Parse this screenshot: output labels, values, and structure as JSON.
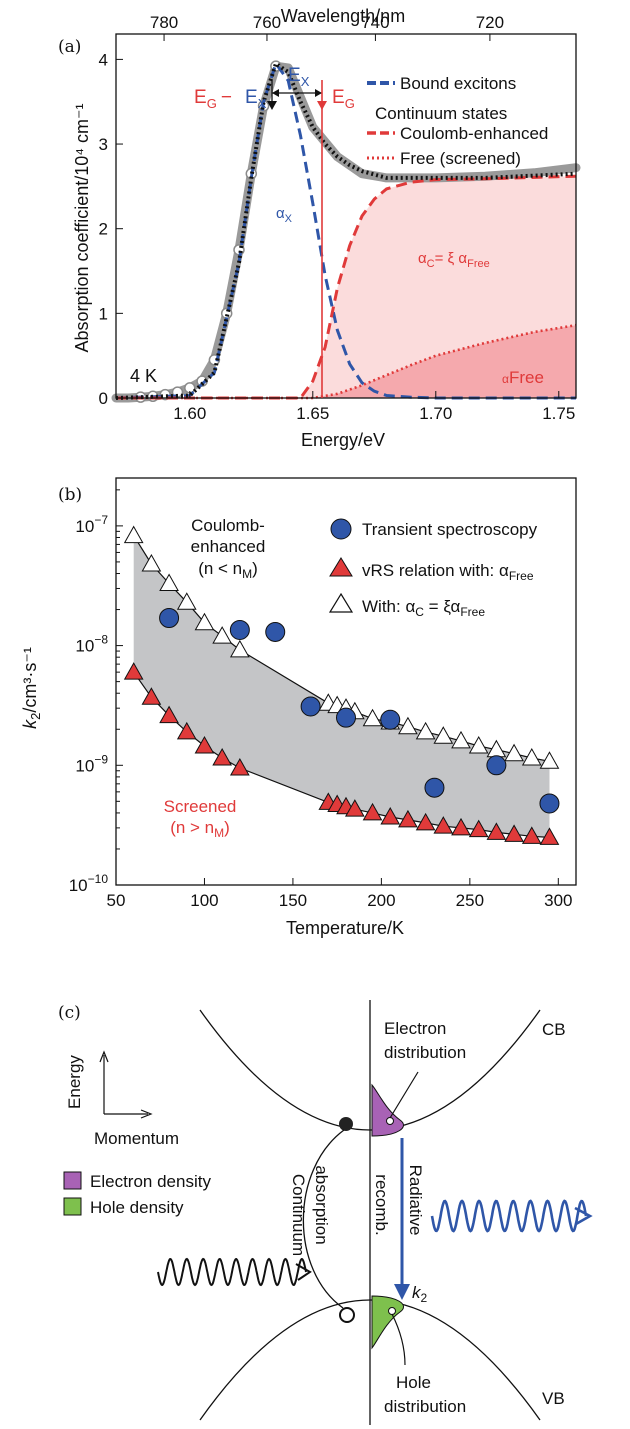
{
  "colors": {
    "blue": "#2f56a8",
    "red": "#e03a3a",
    "gray": "#9a9a9a",
    "shade": "#c4c5c7",
    "lightred": "#fbdcdc",
    "midred": "#f5a9ad",
    "purple": "#a862b5",
    "green": "#7ec04d"
  },
  "chart_data": [
    {
      "id": "a",
      "type": "line",
      "panel_label": "(a)",
      "xlabel": "Energy/eV",
      "ylabel": "Absorption coefficient/10⁴ cm⁻¹",
      "x2label": "Wavelength/nm",
      "xlim": [
        1.57,
        1.757
      ],
      "ylim": [
        0,
        4.3
      ],
      "xticks": [
        "1.60",
        "1.65",
        "1.70",
        "1.75"
      ],
      "xtick_values": [
        1.6,
        1.65,
        1.7,
        1.75
      ],
      "yticks": [
        "0",
        "1",
        "2",
        "3",
        "4"
      ],
      "ytick_values": [
        0,
        1,
        2,
        3,
        4
      ],
      "x2ticks": [
        "780",
        "760",
        "740",
        "720"
      ],
      "x2tick_values": [
        780,
        760,
        740,
        720
      ],
      "annotations": {
        "temperature": "4 K",
        "eg_minus_ex": "E",
        "g_sub": "G",
        "minus": "−",
        "ex_sub": "X",
        "ex_top": "E",
        "eg": "E",
        "alpha_x": "α",
        "x_sub": "X",
        "alpha_c_a": "α",
        "c_sub": "C",
        "alpha_c_b": "= ξ α",
        "free_sub": "Free",
        "alpha_free_a": "α",
        "alpha_free_b": "Free"
      },
      "legend": {
        "bound": "Bound excitons",
        "continuum": "Continuum states",
        "coulomb": "Coulomb-enhanced",
        "free": "Free (screened)"
      },
      "series": [
        {
          "name": "Bound excitons",
          "x": [
            1.57,
            1.6,
            1.61,
            1.62,
            1.625,
            1.63,
            1.635,
            1.64,
            1.645,
            1.65,
            1.655,
            1.66,
            1.665,
            1.67,
            1.675,
            1.68,
            1.69,
            1.7,
            1.757
          ],
          "values": [
            0,
            0.03,
            0.3,
            1.6,
            2.6,
            3.5,
            3.95,
            3.75,
            3.1,
            2.3,
            1.45,
            0.8,
            0.4,
            0.18,
            0.08,
            0.03,
            0.01,
            0,
            0
          ]
        },
        {
          "name": "Coulomb-enhanced",
          "x": [
            1.57,
            1.645,
            1.65,
            1.655,
            1.66,
            1.665,
            1.67,
            1.675,
            1.68,
            1.69,
            1.7,
            1.72,
            1.757
          ],
          "values": [
            0,
            0,
            0.2,
            0.6,
            1.3,
            1.8,
            2.15,
            2.35,
            2.47,
            2.55,
            2.58,
            2.59,
            2.62
          ]
        },
        {
          "name": "Free (screened)",
          "x": [
            1.57,
            1.65,
            1.66,
            1.67,
            1.68,
            1.69,
            1.7,
            1.72,
            1.74,
            1.757
          ],
          "values": [
            0,
            0,
            0.05,
            0.15,
            0.27,
            0.39,
            0.5,
            0.65,
            0.78,
            0.86
          ]
        },
        {
          "name": "Total",
          "x": [
            1.57,
            1.6,
            1.61,
            1.62,
            1.625,
            1.63,
            1.635,
            1.64,
            1.645,
            1.65,
            1.655,
            1.66,
            1.665,
            1.67,
            1.68,
            1.7,
            1.72,
            1.757
          ],
          "values": [
            0,
            0.03,
            0.3,
            1.6,
            2.6,
            3.5,
            3.95,
            3.85,
            3.5,
            3.2,
            3.0,
            2.85,
            2.75,
            2.68,
            2.6,
            2.6,
            2.6,
            2.65
          ]
        },
        {
          "name": "Measured",
          "x": [
            1.57,
            1.575,
            1.58,
            1.585,
            1.59,
            1.595,
            1.6,
            1.605,
            1.61,
            1.615,
            1.62,
            1.625,
            1.63,
            1.635,
            1.64,
            1.645,
            1.65,
            1.66,
            1.67,
            1.68,
            1.7,
            1.72,
            1.74,
            1.757
          ],
          "values": [
            0,
            0,
            0.01,
            0.02,
            0.04,
            0.07,
            0.12,
            0.2,
            0.45,
            1.0,
            1.75,
            2.65,
            3.45,
            3.92,
            3.9,
            3.55,
            3.2,
            2.85,
            2.65,
            2.6,
            2.6,
            2.62,
            2.66,
            2.72
          ]
        }
      ]
    },
    {
      "id": "b",
      "type": "scatter",
      "panel_label": "(b)",
      "xlabel": "Temperature/K",
      "ylabel": "k",
      "ylabel_sub": "2",
      "ylabel_unit": "/cm³·s⁻¹",
      "xlim": [
        50,
        310
      ],
      "ylim_log10": [
        -10,
        -6.6
      ],
      "xticks": [
        "50",
        "100",
        "150",
        "200",
        "250",
        "300"
      ],
      "xtick_values": [
        50,
        100,
        150,
        200,
        250,
        300
      ],
      "ytick_base": "10",
      "yticks_exp": [
        "−10",
        "−9",
        "−8",
        "−7"
      ],
      "ytick_values": [
        -10,
        -9,
        -8,
        -7
      ],
      "annotations": {
        "coulomb_1": "Coulomb-",
        "coulomb_2": "enhanced",
        "coulomb_3a": "(n < n",
        "coulomb_3b": "M",
        "coulomb_3c": ")",
        "screened_1": "Screened",
        "screened_2a": "(n > n",
        "screened_2b": "M",
        "screened_2c": ")"
      },
      "legend": {
        "transient": "Transient spectroscopy",
        "vrs": "vRS relation with: α",
        "vrs_sub": "Free",
        "with_a": "With:  α",
        "with_c": "C",
        "with_b": " = ξα",
        "with_free": "Free"
      },
      "series": [
        {
          "name": "Transient spectroscopy",
          "x": [
            80,
            120,
            140,
            160,
            180,
            205,
            230,
            265,
            295
          ],
          "values": [
            1.7e-08,
            1.35e-08,
            1.3e-08,
            3.1e-09,
            2.5e-09,
            2.4e-09,
            6.5e-10,
            1e-09,
            4.8e-10
          ]
        },
        {
          "name": "vRS relation with: αFree",
          "x": [
            60,
            70,
            80,
            90,
            100,
            110,
            120,
            170,
            175,
            180,
            185,
            195,
            205,
            215,
            225,
            235,
            245,
            255,
            265,
            275,
            285,
            295
          ],
          "values": [
            6e-09,
            3.7e-09,
            2.6e-09,
            1.9e-09,
            1.45e-09,
            1.15e-09,
            9.5e-10,
            4.9e-10,
            4.7e-10,
            4.5e-10,
            4.3e-10,
            4e-10,
            3.7e-10,
            3.5e-10,
            3.3e-10,
            3.1e-10,
            3e-10,
            2.9e-10,
            2.75e-10,
            2.65e-10,
            2.55e-10,
            2.5e-10
          ]
        },
        {
          "name": "With: αC = ξαFree",
          "x": [
            60,
            70,
            80,
            90,
            100,
            110,
            120,
            170,
            175,
            180,
            185,
            195,
            205,
            215,
            225,
            235,
            245,
            255,
            265,
            275,
            285,
            295
          ],
          "values": [
            8.3e-08,
            4.8e-08,
            3.3e-08,
            2.3e-08,
            1.55e-08,
            1.2e-08,
            9.2e-09,
            3.3e-09,
            3.15e-09,
            3e-09,
            2.8e-09,
            2.45e-09,
            2.3e-09,
            2.1e-09,
            1.9e-09,
            1.75e-09,
            1.6e-09,
            1.45e-09,
            1.35e-09,
            1.25e-09,
            1.15e-09,
            1.08e-09
          ]
        }
      ]
    }
  ],
  "panel_c": {
    "label": "(c)",
    "energy": "Energy",
    "momentum": "Momentum",
    "electron_distribution_1": "Electron",
    "electron_distribution_2": "distribution",
    "hole_distribution_1": "Hole",
    "hole_distribution_2": "distribution",
    "cb": "CB",
    "vb": "VB",
    "electron_density": "Electron density",
    "hole_density": "Hole density",
    "continuum_1": "Continuum",
    "continuum_2": "absorption",
    "radiative": "Radiative",
    "recomb": "recomb.",
    "k2": "k",
    "k2_sub": "2"
  }
}
